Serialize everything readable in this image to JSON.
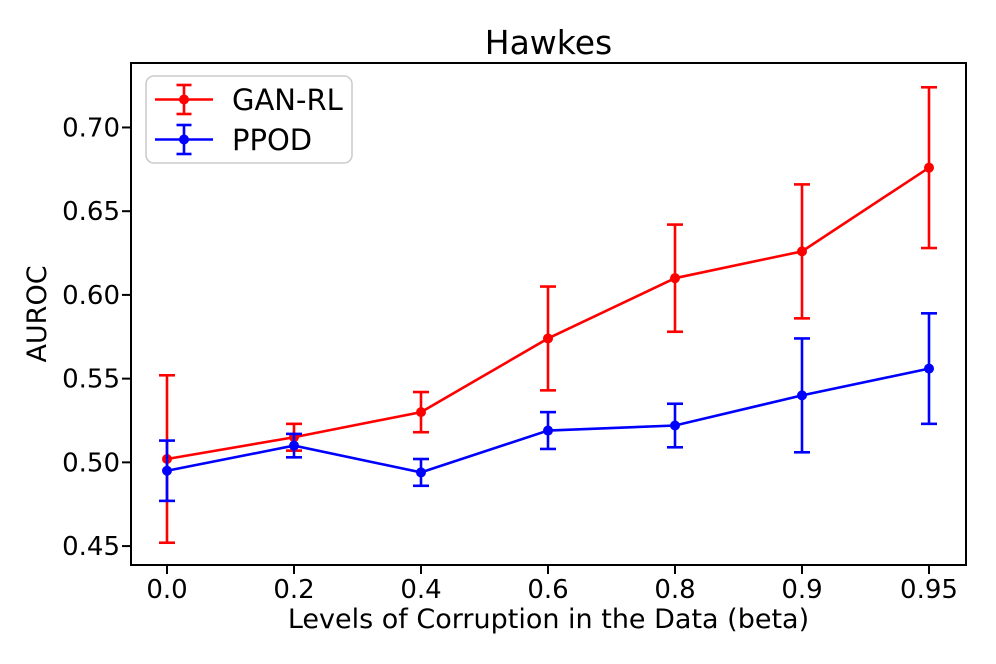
{
  "chart_data": {
    "type": "line",
    "title": "Hawkes",
    "xlabel": "Levels of Corruption in the Data (beta)",
    "ylabel": "AUROC",
    "categories": [
      "0.0",
      "0.2",
      "0.4",
      "0.6",
      "0.8",
      "0.9",
      "0.95"
    ],
    "y_tick_labels": [
      "0.45",
      "0.50",
      "0.55",
      "0.60",
      "0.65",
      "0.70"
    ],
    "y_tick_values": [
      0.45,
      0.5,
      0.55,
      0.6,
      0.65,
      0.7
    ],
    "ylim": [
      0.4387,
      0.7385
    ],
    "grid": false,
    "legend_position": "upper-left",
    "marker": "circle",
    "error_bars": true,
    "series": [
      {
        "name": "GAN-RL",
        "color": "#ff0000",
        "values": [
          0.502,
          0.515,
          0.53,
          0.574,
          0.61,
          0.626,
          0.676
        ],
        "errors": [
          0.05,
          0.008,
          0.012,
          0.031,
          0.032,
          0.04,
          0.048
        ]
      },
      {
        "name": "PPOD",
        "color": "#0000ff",
        "values": [
          0.495,
          0.51,
          0.494,
          0.519,
          0.522,
          0.54,
          0.556
        ],
        "errors": [
          0.018,
          0.007,
          0.008,
          0.011,
          0.013,
          0.034,
          0.033
        ]
      }
    ],
    "colors": {
      "background": "#ffffff",
      "spine": "#000000",
      "text": "#000000",
      "legend_border": "#cccccc"
    }
  }
}
